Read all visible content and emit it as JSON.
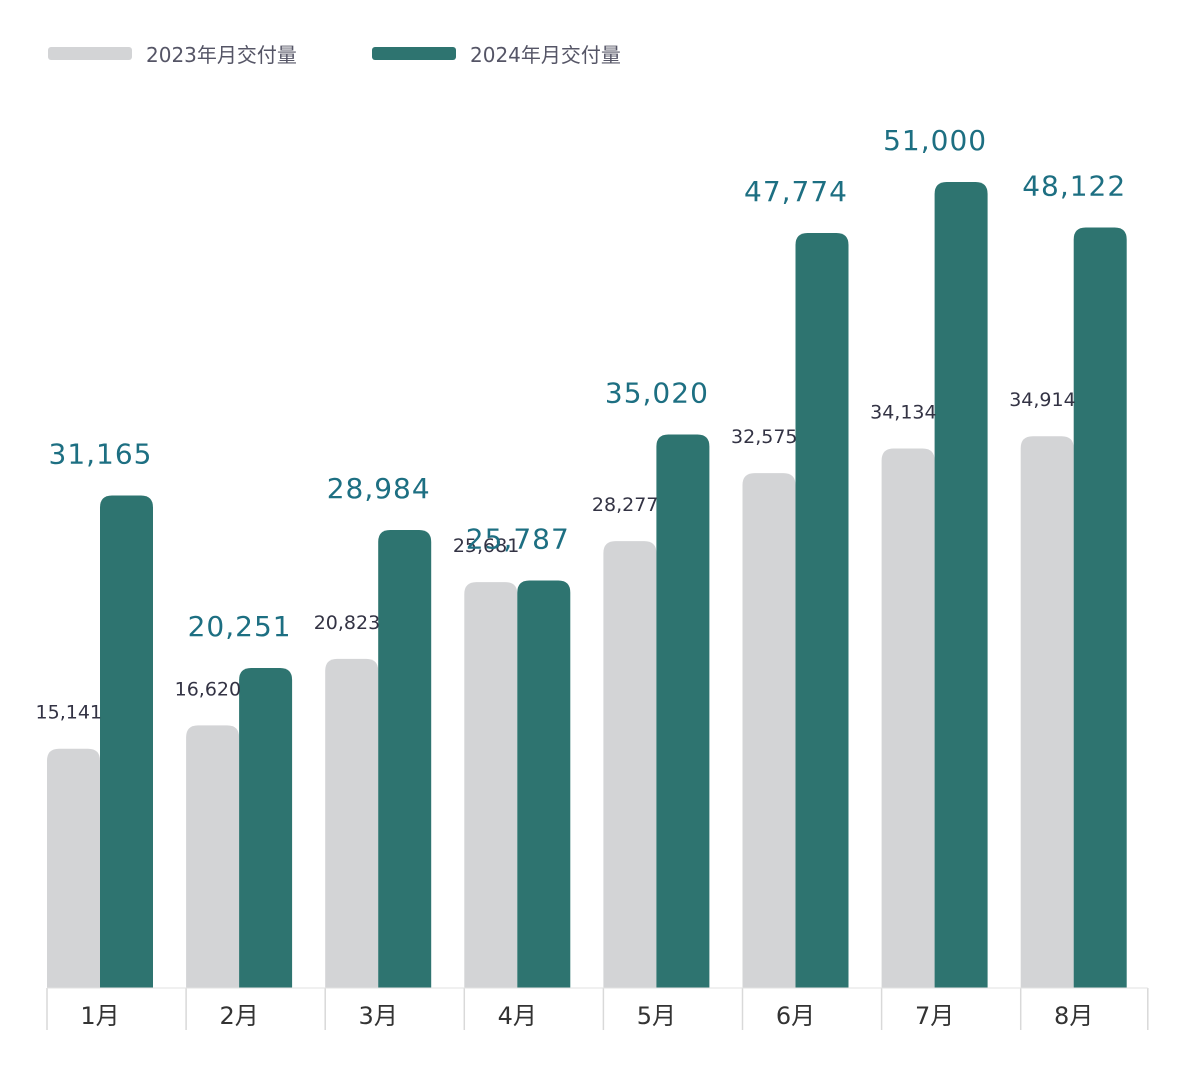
{
  "colors": {
    "series_2023": "#d3d4d6",
    "series_2024": "#2e7470",
    "label_2024": "#1d6f82",
    "label_2023": "#333344"
  },
  "chart_data": {
    "type": "bar",
    "categories": [
      "1月",
      "2月",
      "3月",
      "4月",
      "5月",
      "6月",
      "7月",
      "8月"
    ],
    "series": [
      {
        "name": "2023年月交付量",
        "values": [
          15141,
          16620,
          20823,
          25681,
          28277,
          32575,
          34134,
          34914
        ],
        "labels": [
          "15,141",
          "16,620",
          "20,823",
          "25,681",
          "28,277",
          "32,575",
          "34,134",
          "34,914"
        ]
      },
      {
        "name": "2024年月交付量",
        "values": [
          31165,
          20251,
          28984,
          25787,
          35020,
          47774,
          51000,
          48122
        ],
        "labels": [
          "31,165",
          "20,251",
          "28,984",
          "25,787",
          "35,020",
          "47,774",
          "51,000",
          "48,122"
        ]
      }
    ],
    "ylim": [
      0,
      51000
    ],
    "grid": false,
    "legend": "top-left"
  }
}
